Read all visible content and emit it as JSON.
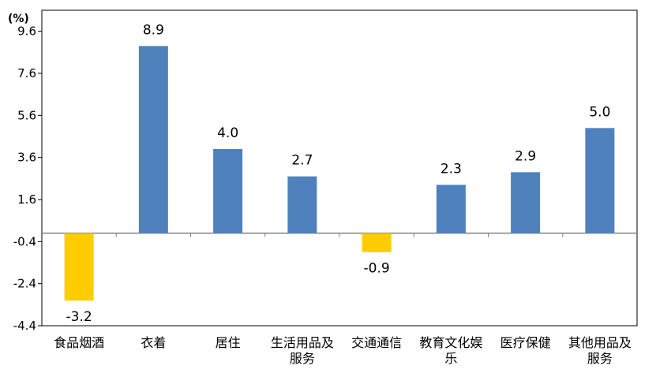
{
  "chart_data": {
    "type": "bar",
    "unit_label": "(%)",
    "categories": [
      [
        "食品烟酒"
      ],
      [
        "衣着"
      ],
      [
        "居住"
      ],
      [
        "生活用品及",
        "服务"
      ],
      [
        "交通通信"
      ],
      [
        "教育文化娱",
        "乐"
      ],
      [
        "医疗保健"
      ],
      [
        "其他用品及",
        "服务"
      ]
    ],
    "values": [
      -3.2,
      8.9,
      4.0,
      2.7,
      -0.9,
      2.3,
      2.9,
      5.0
    ],
    "value_labels": [
      "-3.2",
      "8.9",
      "4.0",
      "2.7",
      "-0.9",
      "2.3",
      "2.9",
      "5.0"
    ],
    "yticks": [
      "9.6",
      "7.6",
      "5.6",
      "3.6",
      "1.6",
      "-0.4",
      "-2.4",
      "-4.4"
    ],
    "ylim": [
      -4.4,
      10.6
    ],
    "colors": {
      "positive": "#4f81bd",
      "negative": "#ffcc00"
    },
    "grid": false,
    "legend": "none"
  }
}
